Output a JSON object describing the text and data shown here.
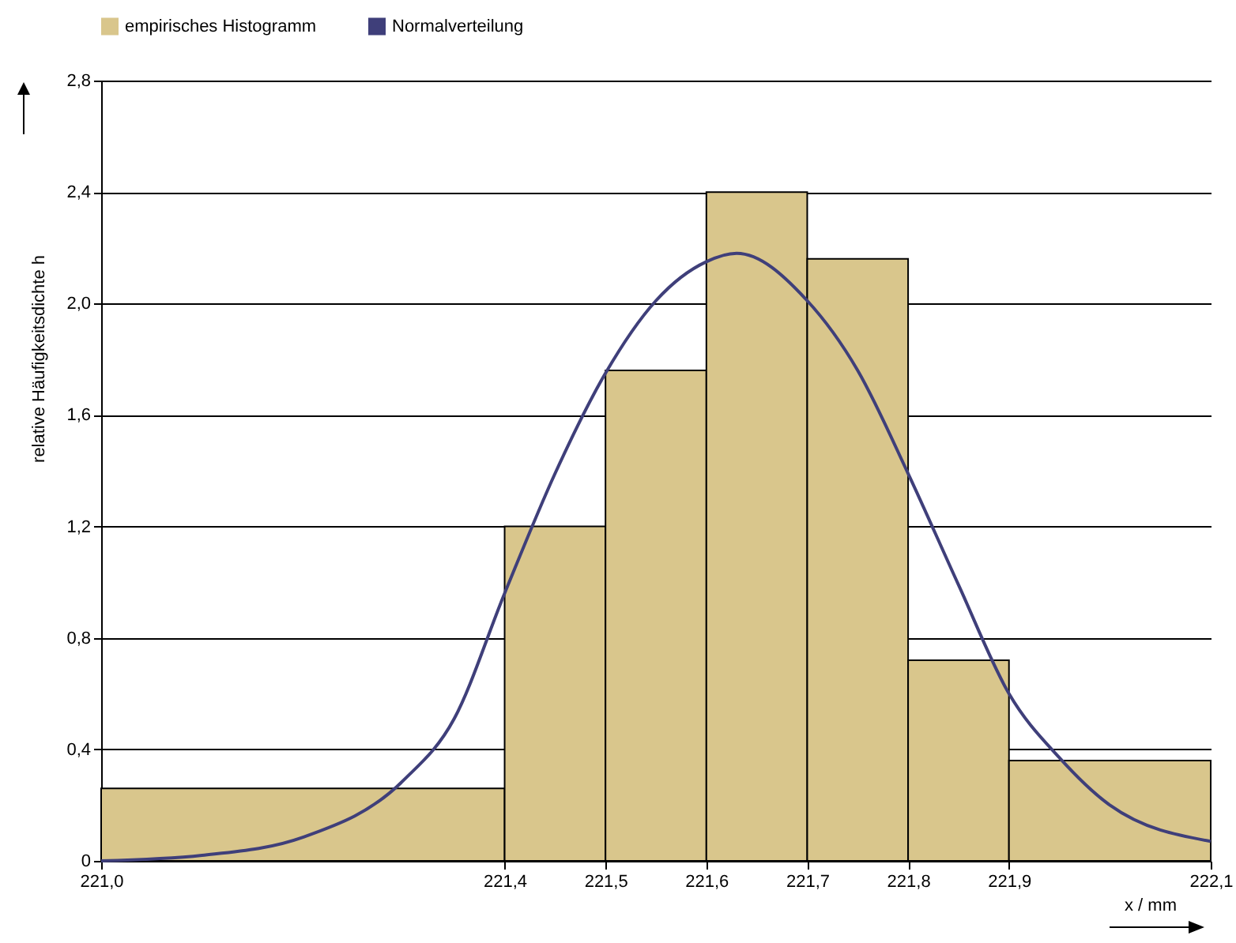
{
  "chart_data": {
    "type": "histogram",
    "xlabel": "x / mm",
    "ylabel": "relative Häufigkeitsdichte h",
    "bins": [
      221.0,
      221.4,
      221.5,
      221.6,
      221.7,
      221.8,
      221.9,
      222.1
    ],
    "series": [
      {
        "name": "empirisches Histogramm",
        "color": "#d9c68c",
        "values": [
          0.26,
          1.2,
          1.76,
          2.4,
          2.16,
          0.72,
          0.36
        ]
      },
      {
        "type": "line",
        "name": "Normalverteilung",
        "color": "#3f3f7a",
        "x": [
          221.0,
          221.1,
          221.2,
          221.3,
          221.35,
          221.4,
          221.45,
          221.5,
          221.55,
          221.6,
          221.63,
          221.7,
          221.75,
          221.8,
          221.85,
          221.9,
          221.95,
          222.0,
          222.1
        ],
        "values": [
          0.0,
          0.02,
          0.085,
          0.29,
          0.51,
          0.96,
          1.39,
          1.75,
          2.01,
          2.15,
          2.18,
          2.01,
          1.76,
          1.39,
          0.99,
          0.6,
          0.37,
          0.2,
          0.07
        ]
      }
    ],
    "xlim": [
      221.0,
      222.1
    ],
    "xticks": [
      {
        "value": 221.0,
        "label": "221,0"
      },
      {
        "value": 221.4,
        "label": "221,4"
      },
      {
        "value": 221.5,
        "label": "221,5"
      },
      {
        "value": 221.6,
        "label": "221,6"
      },
      {
        "value": 221.7,
        "label": "221,7"
      },
      {
        "value": 221.8,
        "label": "221,8"
      },
      {
        "value": 221.9,
        "label": "221,9"
      },
      {
        "value": 222.1,
        "label": "222,1"
      }
    ],
    "ylim": [
      0,
      2.8
    ],
    "yticks": [
      0,
      {
        "value": 0.4,
        "label": "0,4"
      },
      {
        "value": 0.8,
        "label": "0,8"
      },
      {
        "value": 1.2,
        "label": "1,2"
      },
      {
        "value": 1.6,
        "label": "1,6"
      },
      {
        "value": 2.0,
        "label": "2,0"
      },
      {
        "value": 2.4,
        "label": "2,4"
      },
      {
        "value": 2.8,
        "label": "2,8"
      }
    ],
    "grid": "y",
    "legend": "top left",
    "marker": "none",
    "line_style": "solid"
  }
}
